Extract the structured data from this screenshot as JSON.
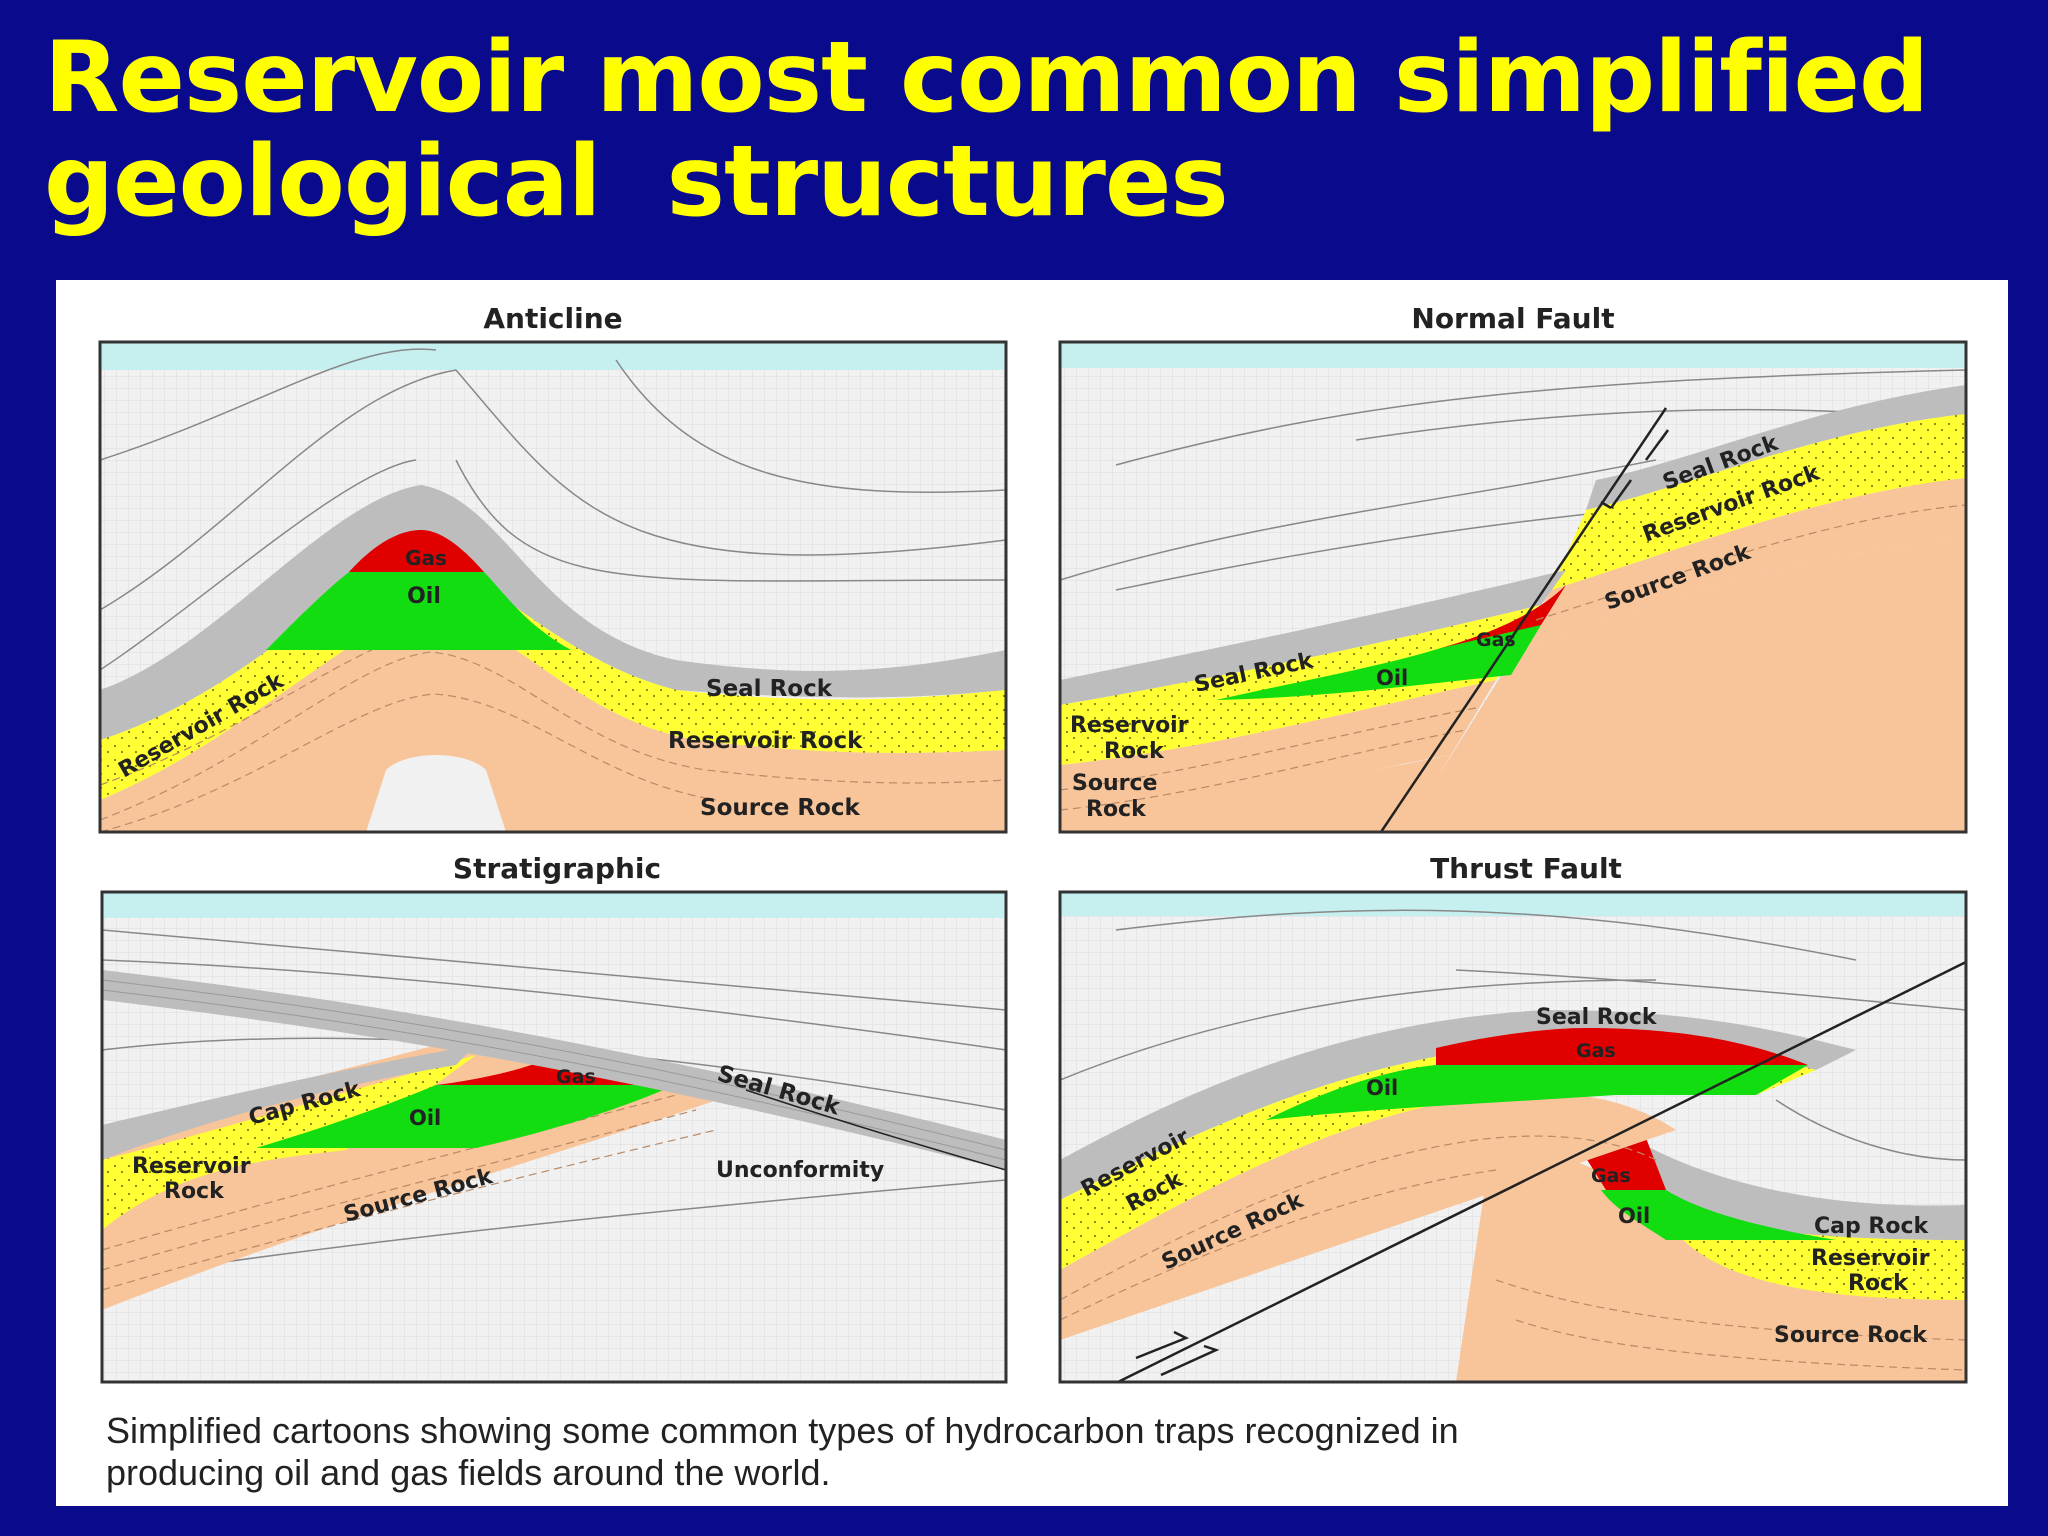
{
  "title": {
    "line1": "Reservoir most common simplified",
    "line2": "geological  structures"
  },
  "panels": {
    "anticline": {
      "title": "Anticline",
      "labels": {
        "gas": "Gas",
        "oil": "Oil",
        "reservoir_left": "Reservoir Rock",
        "seal": "Seal Rock",
        "reservoir": "Reservoir Rock",
        "source": "Source Rock"
      }
    },
    "normal_fault": {
      "title": "Normal Fault",
      "labels": {
        "seal_upper": "Seal Rock",
        "reservoir_upper": "Reservoir Rock",
        "source_upper": "Source Rock",
        "gas": "Gas",
        "oil": "Oil",
        "seal_lower": "Seal Rock",
        "reservoir_lower_1": "Reservoir",
        "reservoir_lower_2": "Rock",
        "source_lower_1": "Source",
        "source_lower_2": "Rock"
      }
    },
    "stratigraphic": {
      "title": "Stratigraphic",
      "labels": {
        "gas": "Gas",
        "cap": "Cap Rock",
        "oil": "Oil",
        "seal": "Seal Rock",
        "reservoir_1": "Reservoir",
        "reservoir_2": "Rock",
        "source": "Source Rock",
        "unconformity": "Unconformity"
      }
    },
    "thrust_fault": {
      "title": "Thrust Fault",
      "labels": {
        "seal": "Seal Rock",
        "gas_upper": "Gas",
        "oil_upper": "Oil",
        "reservoir_1": "Reservoir",
        "reservoir_2": "Rock",
        "source_left": "Source Rock",
        "gas_lower": "Gas",
        "oil_lower": "Oil",
        "cap": "Cap Rock",
        "reservoir_right_1": "Reservoir",
        "reservoir_right_2": "Rock",
        "source_right": "Source Rock"
      }
    }
  },
  "caption": {
    "line1": "Simplified cartoons showing some common types of hydrocarbon traps recognized in",
    "line2": "producing oil and gas fields around the world."
  },
  "colors": {
    "background": "#0a0a8c",
    "title": "#ffff00",
    "water": "#c6f0f0",
    "seal": "#bdbdbd",
    "reservoir": "#ffff33",
    "source": "#f8c49a",
    "gas": "#e00000",
    "oil": "#11dd11",
    "frame": "#333333"
  }
}
